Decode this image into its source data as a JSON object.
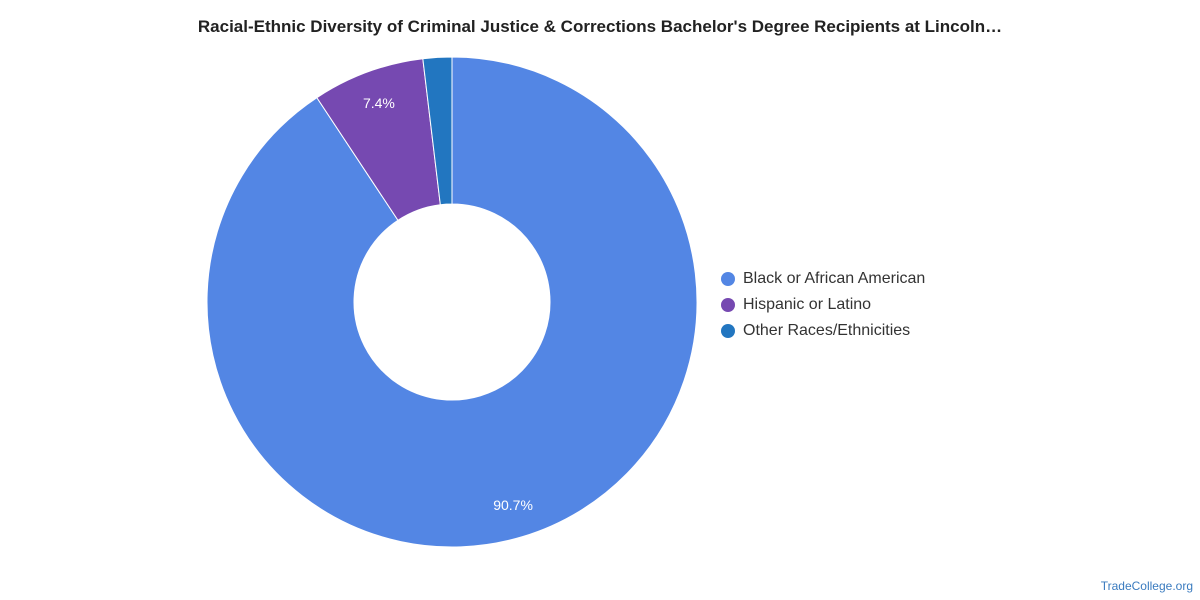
{
  "title": "Racial-Ethnic Diversity of Criminal Justice & Corrections Bachelor's Degree Recipients at Lincoln…",
  "source_credit": "TradeCollege.org",
  "chart_data": {
    "type": "pie",
    "title": "Racial-Ethnic Diversity of Criminal Justice & Corrections Bachelor's Degree Recipients at Lincoln…",
    "donut": true,
    "legend_position": "right",
    "categories": [
      "Black or African American",
      "Hispanic or Latino",
      "Other Races/Ethnicities"
    ],
    "values": [
      90.7,
      7.4,
      1.9
    ],
    "colors": [
      "#5386E4",
      "#7649B1",
      "#2276C0"
    ],
    "data_labels": [
      "90.7%",
      "7.4%",
      ""
    ]
  },
  "legend": {
    "items": [
      {
        "label": "Black or African American",
        "color": "#5386E4"
      },
      {
        "label": "Hispanic or Latino",
        "color": "#7649B1"
      },
      {
        "label": "Other Races/Ethnicities",
        "color": "#2276C0"
      }
    ]
  }
}
